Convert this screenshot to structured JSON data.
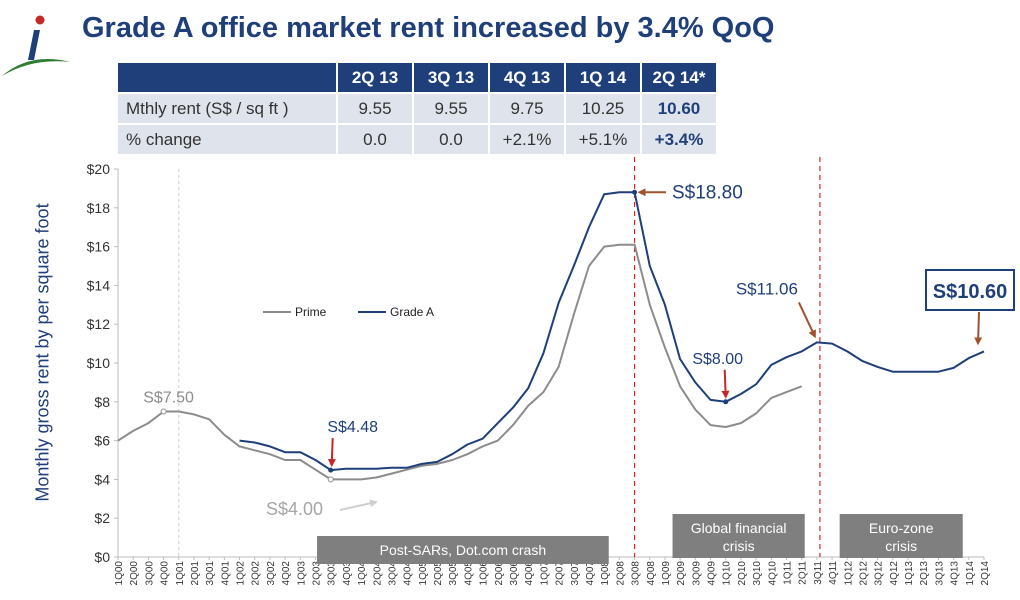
{
  "title": "Grade A office market rent increased by 3.4% QoQ",
  "colors": {
    "navy": "#1f3f7a",
    "prime": "#8c8c8c",
    "annot_arrow": "#a0522d",
    "crisis_line": "#d62728",
    "bar": "#7f7f7f"
  },
  "table": {
    "headers": [
      "2Q 13",
      "3Q 13",
      "4Q 13",
      "1Q 14",
      "2Q 14*"
    ],
    "rows": [
      {
        "label": "Mthly rent (S$ / sq ft )",
        "values": [
          "9.55",
          "9.55",
          "9.75",
          "10.25",
          "10.60"
        ]
      },
      {
        "label": "% change",
        "values": [
          "0.0",
          "0.0",
          "+2.1%",
          "+5.1%",
          "+3.4%"
        ]
      }
    ]
  },
  "chart_data": {
    "type": "line",
    "ylabel": "Monthly gross rent by per square foot",
    "ylim": [
      0,
      20
    ],
    "y_ticks": [
      "$0",
      "$2",
      "$4",
      "$6",
      "$8",
      "$10",
      "$12",
      "$14",
      "$16",
      "$18",
      "$20"
    ],
    "categories": [
      "1Q00",
      "2Q00",
      "3Q00",
      "4Q00",
      "1Q01",
      "2Q01",
      "3Q01",
      "4Q01",
      "1Q02",
      "2Q02",
      "3Q02",
      "4Q02",
      "1Q03",
      "2Q03",
      "3Q03",
      "4Q03",
      "1Q04",
      "2Q04",
      "3Q04",
      "4Q04",
      "1Q05",
      "2Q05",
      "3Q05",
      "4Q05",
      "1Q06",
      "2Q06",
      "3Q06",
      "4Q06",
      "1Q07",
      "2Q07",
      "3Q07",
      "4Q07",
      "1Q08",
      "2Q08",
      "3Q08",
      "4Q08",
      "1Q09",
      "2Q09",
      "3Q09",
      "4Q09",
      "1Q10",
      "2Q10",
      "3Q10",
      "4Q10",
      "1Q11",
      "2Q11",
      "3Q11",
      "4Q11",
      "1Q12",
      "2Q12",
      "3Q12",
      "4Q12",
      "1Q13",
      "2Q13",
      "3Q13",
      "4Q13",
      "1Q14",
      "2Q14"
    ],
    "series": [
      {
        "name": "Prime",
        "color": "#8c8c8c",
        "values": [
          6.0,
          6.5,
          6.9,
          7.5,
          7.5,
          7.35,
          7.1,
          6.3,
          5.7,
          5.5,
          5.3,
          5.0,
          5.0,
          4.5,
          4.0,
          4.0,
          4.0,
          4.1,
          4.3,
          4.5,
          4.7,
          4.8,
          5.0,
          5.3,
          5.7,
          6.0,
          6.8,
          7.8,
          8.5,
          9.8,
          12.5,
          15.0,
          16.0,
          16.1,
          16.1,
          13.0,
          10.8,
          8.8,
          7.6,
          6.8,
          6.7,
          6.9,
          7.4,
          8.2,
          8.5,
          8.8,
          null,
          null,
          null,
          null,
          null,
          null,
          null,
          null,
          null,
          null,
          null,
          null
        ]
      },
      {
        "name": "Grade A",
        "color": "#1f3f7a",
        "values": [
          null,
          null,
          null,
          null,
          null,
          null,
          null,
          null,
          6.0,
          5.9,
          5.7,
          5.4,
          5.4,
          5.0,
          4.48,
          4.55,
          4.55,
          4.55,
          4.6,
          4.6,
          4.8,
          4.9,
          5.3,
          5.8,
          6.1,
          6.9,
          7.7,
          8.7,
          10.5,
          13.1,
          15.0,
          17.0,
          18.7,
          18.8,
          18.8,
          15.0,
          13.0,
          10.2,
          9.0,
          8.1,
          8.0,
          8.4,
          8.9,
          9.9,
          10.3,
          10.6,
          11.06,
          11.0,
          10.6,
          10.1,
          9.8,
          9.55,
          9.55,
          9.55,
          9.55,
          9.75,
          10.25,
          10.6
        ]
      }
    ],
    "legend": [
      "Prime",
      "Grade A"
    ],
    "annotations": [
      {
        "text": "S$7.50",
        "category": "4Q00",
        "value": 7.5
      },
      {
        "text": "S$4.48",
        "category": "3Q03",
        "value": 4.48
      },
      {
        "text": "S$4.00",
        "category": "3Q03",
        "value": 4.0
      },
      {
        "text": "S$18.80",
        "category": "3Q08",
        "value": 18.8
      },
      {
        "text": "S$8.00",
        "category": "1Q10",
        "value": 8.0
      },
      {
        "text": "S$11.06",
        "category": "3Q11",
        "value": 11.06
      },
      {
        "text": "S$10.60",
        "category": "2Q14",
        "value": 10.6
      }
    ],
    "event_labels": [
      {
        "text": "Post-SARs, Dot.com crash"
      },
      {
        "text": "Global financial crisis"
      },
      {
        "text": "Euro-zone crisis"
      }
    ]
  }
}
